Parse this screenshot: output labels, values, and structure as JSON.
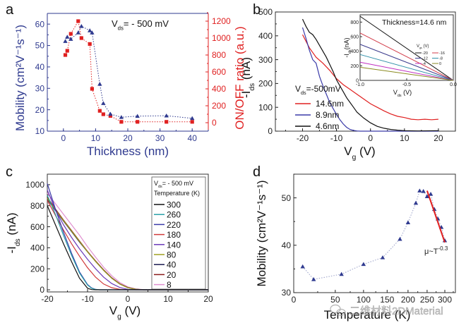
{
  "chart_data": [
    {
      "panel": "a",
      "type": "scatter",
      "title": "",
      "annotation": "V_ds = - 500 mV",
      "xlabel": "Thickness (nm)",
      "ylabel": "Mobility (cm²V⁻¹s⁻¹)",
      "y2label": "ON/OFF ratio (a.u.)",
      "xlim": [
        -5,
        45
      ],
      "ylim": [
        10,
        65
      ],
      "y2lim": [
        -100,
        1400
      ],
      "xticks": [
        0,
        10,
        20,
        30,
        40
      ],
      "yticks": [
        10,
        20,
        30,
        40,
        50,
        60
      ],
      "y2ticks": [
        0,
        200,
        400,
        600,
        800,
        1000,
        1200
      ],
      "colors": {
        "mobility": "#2f3a8f",
        "onoff": "#e02020"
      },
      "series": [
        {
          "name": "Mobility",
          "axis": "left",
          "marker": "triangle",
          "x": [
            0.6,
            1.2,
            2.3,
            4.6,
            5.6,
            8.2,
            8.9,
            11.3,
            12.4,
            14.6,
            18,
            23,
            32,
            40
          ],
          "y": [
            52,
            54,
            53,
            56,
            59,
            57,
            56,
            32,
            23,
            18,
            16.5,
            17,
            17.2,
            16
          ]
        },
        {
          "name": "ON/OFF ratio",
          "axis": "right",
          "marker": "square",
          "x": [
            0.6,
            1.2,
            2.3,
            4.6,
            5.6,
            8.2,
            8.9,
            11.3,
            12.4,
            14.6,
            18,
            23,
            32,
            40
          ],
          "y": [
            800,
            850,
            1050,
            1200,
            1000,
            930,
            400,
            140,
            100,
            80,
            10,
            10,
            10,
            10
          ]
        }
      ]
    },
    {
      "panel": "b",
      "type": "line",
      "xlabel": "V_g (V)",
      "ylabel": "-I_ds (nA)",
      "xlim": [
        -28,
        25
      ],
      "ylim": [
        0,
        500
      ],
      "xticks": [
        -20,
        -10,
        0,
        10,
        20
      ],
      "yticks": [
        0,
        100,
        200,
        300,
        400,
        500
      ],
      "legend_title": "V_ds=-500mV",
      "legend_position": "bottom-left",
      "series": [
        {
          "name": "14.6nm",
          "color": "#e02020",
          "x": [
            -20,
            -18,
            -16,
            -14,
            -12,
            -10,
            -8,
            -6,
            -4,
            -2,
            0,
            2,
            4,
            6,
            8,
            10,
            12,
            14,
            16,
            18,
            20
          ],
          "y": [
            405,
            350,
            310,
            285,
            255,
            220,
            195,
            175,
            155,
            135,
            115,
            100,
            85,
            72,
            62,
            57,
            50,
            48,
            50,
            48,
            50
          ]
        },
        {
          "name": "8.9nm",
          "color": "#3a3aa8",
          "x": [
            -20,
            -19,
            -18,
            -17,
            -16,
            -15,
            -14,
            -13,
            -12,
            -11,
            -10,
            -9,
            -8,
            -7,
            -6,
            -5,
            -4,
            -3,
            0,
            10,
            20
          ],
          "y": [
            435,
            390,
            340,
            300,
            285,
            230,
            190,
            155,
            120,
            95,
            70,
            48,
            30,
            16,
            7,
            3,
            1,
            0,
            0,
            0,
            0
          ]
        },
        {
          "name": "4.6nm",
          "color": "#111111",
          "x": [
            -20,
            -19,
            -18,
            -17,
            -16,
            -15,
            -14,
            -13,
            -12,
            -11,
            -10,
            -9,
            -8,
            -7,
            -6,
            -5,
            -4,
            -2,
            0,
            2,
            4,
            6,
            8,
            10,
            14,
            20
          ],
          "y": [
            470,
            440,
            415,
            405,
            385,
            360,
            335,
            310,
            280,
            250,
            215,
            190,
            165,
            140,
            120,
            100,
            80,
            55,
            35,
            20,
            12,
            7,
            4,
            2,
            1,
            2
          ]
        }
      ],
      "inset": {
        "title": "Thickness=14.6 nm",
        "xlabel": "V_ds (V)",
        "ylabel": "-I_ds (nA)",
        "xlim": [
          -1.0,
          0.0
        ],
        "ylim": [
          0,
          900
        ],
        "xticks": [
          -1.0,
          -0.5,
          0.0
        ],
        "xtick_labels": [
          "-1.0",
          "-0.5",
          "0.0"
        ],
        "yticks": [
          0,
          200,
          400,
          600,
          800
        ],
        "legend_title": "V_gs (V)",
        "series": [
          {
            "name": "-20",
            "color": "#111111",
            "x": [
              -1.0,
              0.0
            ],
            "y": [
              880,
              0
            ]
          },
          {
            "name": "-16",
            "color": "#d23c4a",
            "x": [
              -1.0,
              0.0
            ],
            "y": [
              650,
              0
            ]
          },
          {
            "name": "-12",
            "color": "#3a3a8c",
            "x": [
              -1.0,
              0.0
            ],
            "y": [
              495,
              0
            ]
          },
          {
            "name": "-8",
            "color": "#2f8fa8",
            "x": [
              -1.0,
              0.0
            ],
            "y": [
              355,
              0
            ]
          },
          {
            "name": "-4",
            "color": "#c030c0",
            "x": [
              -1.0,
              0.0
            ],
            "y": [
              250,
              0
            ]
          },
          {
            "name": "0",
            "color": "#8a8a20",
            "x": [
              -1.0,
              0.0
            ],
            "y": [
              180,
              0
            ]
          }
        ]
      }
    },
    {
      "panel": "c",
      "type": "line",
      "xlabel": "V_g (V)",
      "ylabel": "-I_ds (nA)",
      "xlim": [
        -20,
        20
      ],
      "ylim": [
        -20,
        1100
      ],
      "xticks": [
        -20,
        -10,
        0,
        10,
        20
      ],
      "yticks": [
        0,
        200,
        400,
        600,
        800,
        1000
      ],
      "legend_title_1": "V_ds = - 500 mV",
      "legend_title_2": "Temperature (K)",
      "legend_position": "top-right",
      "series": [
        {
          "name": "300",
          "color": "#111111",
          "x": [
            -20,
            -18,
            -16,
            -14,
            -12,
            -10,
            -9,
            -8,
            20
          ],
          "y": [
            800,
            620,
            440,
            270,
            110,
            15,
            2,
            0,
            0
          ]
        },
        {
          "name": "260",
          "color": "#2aa0a8",
          "x": [
            -20,
            -18,
            -16,
            -14,
            -12,
            -10,
            -9,
            -8,
            -7,
            20
          ],
          "y": [
            900,
            720,
            520,
            330,
            160,
            45,
            15,
            3,
            0,
            0
          ]
        },
        {
          "name": "220",
          "color": "#3a3aa8",
          "x": [
            -20,
            -18,
            -16,
            -14,
            -12,
            -10,
            -9,
            -8,
            -7,
            20
          ],
          "y": [
            1010,
            770,
            550,
            350,
            170,
            50,
            18,
            4,
            0,
            0
          ]
        },
        {
          "name": "180",
          "color": "#d03a3a",
          "x": [
            -20,
            -18,
            -16,
            -14,
            -12,
            -10,
            -8,
            -6,
            -4,
            -2,
            0,
            20
          ],
          "y": [
            850,
            710,
            570,
            440,
            320,
            210,
            120,
            55,
            20,
            5,
            0,
            0
          ]
        },
        {
          "name": "140",
          "color": "#6a3ab8",
          "x": [
            -20,
            -18,
            -16,
            -14,
            -12,
            -10,
            -8,
            -6,
            -4,
            -2,
            0,
            2,
            20
          ],
          "y": [
            950,
            760,
            620,
            500,
            390,
            290,
            200,
            120,
            60,
            22,
            5,
            0,
            0
          ]
        },
        {
          "name": "80",
          "color": "#a0a020",
          "x": [
            -20,
            -18,
            -16,
            -14,
            -12,
            -10,
            -8,
            -6,
            -4,
            -2,
            0,
            2,
            4,
            20
          ],
          "y": [
            870,
            760,
            660,
            560,
            460,
            360,
            270,
            185,
            110,
            55,
            20,
            5,
            0,
            0
          ]
        },
        {
          "name": "40",
          "color": "#1a1a50",
          "x": [
            -20,
            -18,
            -16,
            -14,
            -12,
            -10,
            -8,
            -6,
            -4,
            -2,
            0,
            2,
            4,
            20
          ],
          "y": [
            860,
            755,
            655,
            555,
            455,
            360,
            270,
            185,
            110,
            55,
            20,
            5,
            0,
            0
          ]
        },
        {
          "name": "20",
          "color": "#8a1a1a",
          "x": [
            -20,
            -18,
            -16,
            -14,
            -12,
            -10,
            -8,
            -6,
            -4,
            -2,
            0,
            2,
            4,
            20
          ],
          "y": [
            880,
            770,
            665,
            565,
            465,
            365,
            275,
            190,
            115,
            58,
            22,
            6,
            0,
            0
          ]
        },
        {
          "name": "8",
          "color": "#e090d0",
          "x": [
            -20,
            -18,
            -16,
            -14,
            -12,
            -10,
            -8,
            -6,
            -4,
            -2,
            0,
            2,
            4,
            6,
            20
          ],
          "y": [
            920,
            820,
            720,
            620,
            520,
            410,
            310,
            215,
            135,
            70,
            28,
            8,
            2,
            0,
            0
          ]
        }
      ]
    },
    {
      "panel": "d",
      "type": "scatter",
      "xlabel": "Temperature (K)",
      "ylabel": "Mobility (cm²V⁻¹s⁻¹)",
      "xscale": "compressed",
      "xlim": [
        0,
        330
      ],
      "ylim": [
        30,
        55
      ],
      "xticks": [
        0,
        50,
        100,
        150,
        200,
        250,
        300
      ],
      "yticks": [
        30,
        40,
        50
      ],
      "annotation": "μ~T^-0.3",
      "series": [
        {
          "name": "Mobility",
          "marker": "triangle",
          "color": "#2f3a8f",
          "x": [
            8,
            20,
            60,
            100,
            140,
            180,
            200,
            220,
            230,
            240,
            250,
            260,
            270,
            280,
            290,
            300
          ],
          "y": [
            35.5,
            32.8,
            33.9,
            36,
            37.4,
            41.3,
            44.8,
            48.9,
            51.5,
            51.4,
            50.3,
            50.8,
            47.6,
            45.6,
            43.8,
            41
          ]
        },
        {
          "name": "Fit",
          "type": "line",
          "color": "#e02020",
          "x": [
            250,
            300
          ],
          "y": [
            51.5,
            40.6
          ]
        }
      ]
    }
  ],
  "panel_labels": [
    "a",
    "b",
    "c",
    "d"
  ],
  "watermark": "二维材料2DMaterial"
}
